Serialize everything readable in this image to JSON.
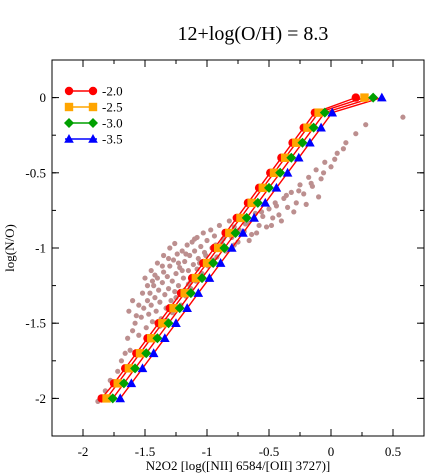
{
  "chart_data": {
    "type": "scatter",
    "title": "12+log(O/H) = 8.3",
    "xlabel": "N2O2 [log([NII] 6584/[OII] 3727)]",
    "ylabel": "log(N/O)",
    "xlim": [
      -2.25,
      0.75
    ],
    "ylim": [
      -2.25,
      0.25
    ],
    "x_ticks": [
      -2,
      -1.5,
      -1,
      -0.5,
      0,
      0.5
    ],
    "x_tick_labels": [
      "-2",
      "-1.5",
      "-1",
      "-0.5",
      "0",
      "0.5"
    ],
    "y_ticks": [
      -2,
      -1.5,
      -1,
      -0.5,
      0
    ],
    "y_tick_labels": [
      "-2",
      "-1.5",
      "-1",
      "-0.5",
      "0"
    ],
    "grid": false,
    "legend_position": "top-left",
    "line_color": "#ff0000",
    "observed_color": "#bc8f8f",
    "series": [
      {
        "name": "-2.0",
        "color": "#ff0000",
        "marker": "circle",
        "points": [
          [
            -1.85,
            -2.0
          ],
          [
            -1.75,
            -1.9
          ],
          [
            -1.66,
            -1.8
          ],
          [
            -1.57,
            -1.7
          ],
          [
            -1.48,
            -1.6
          ],
          [
            -1.39,
            -1.5
          ],
          [
            -1.3,
            -1.4
          ],
          [
            -1.21,
            -1.3
          ],
          [
            -1.12,
            -1.2
          ],
          [
            -1.03,
            -1.1
          ],
          [
            -0.94,
            -1.0
          ],
          [
            -0.85,
            -0.9
          ],
          [
            -0.76,
            -0.8
          ],
          [
            -0.67,
            -0.7
          ],
          [
            -0.58,
            -0.6
          ],
          [
            -0.49,
            -0.5
          ],
          [
            -0.4,
            -0.4
          ],
          [
            -0.31,
            -0.3
          ],
          [
            -0.22,
            -0.2
          ],
          [
            -0.13,
            -0.1
          ],
          [
            0.2,
            0.0
          ]
        ]
      },
      {
        "name": "-2.5",
        "color": "#ffa500",
        "marker": "square",
        "points": [
          [
            -1.81,
            -2.0
          ],
          [
            -1.72,
            -1.9
          ],
          [
            -1.63,
            -1.8
          ],
          [
            -1.54,
            -1.7
          ],
          [
            -1.45,
            -1.6
          ],
          [
            -1.36,
            -1.5
          ],
          [
            -1.27,
            -1.4
          ],
          [
            -1.18,
            -1.3
          ],
          [
            -1.09,
            -1.2
          ],
          [
            -1.0,
            -1.1
          ],
          [
            -0.91,
            -1.0
          ],
          [
            -0.82,
            -0.9
          ],
          [
            -0.73,
            -0.8
          ],
          [
            -0.64,
            -0.7
          ],
          [
            -0.55,
            -0.6
          ],
          [
            -0.46,
            -0.5
          ],
          [
            -0.37,
            -0.4
          ],
          [
            -0.28,
            -0.3
          ],
          [
            -0.19,
            -0.2
          ],
          [
            -0.1,
            -0.1
          ],
          [
            0.27,
            0.0
          ]
        ]
      },
      {
        "name": "-3.0",
        "color": "#00a000",
        "marker": "diamond",
        "points": [
          [
            -1.76,
            -2.0
          ],
          [
            -1.67,
            -1.9
          ],
          [
            -1.58,
            -1.8
          ],
          [
            -1.49,
            -1.7
          ],
          [
            -1.4,
            -1.6
          ],
          [
            -1.31,
            -1.5
          ],
          [
            -1.22,
            -1.4
          ],
          [
            -1.13,
            -1.3
          ],
          [
            -1.04,
            -1.2
          ],
          [
            -0.95,
            -1.1
          ],
          [
            -0.86,
            -1.0
          ],
          [
            -0.77,
            -0.9
          ],
          [
            -0.68,
            -0.8
          ],
          [
            -0.59,
            -0.7
          ],
          [
            -0.5,
            -0.6
          ],
          [
            -0.41,
            -0.5
          ],
          [
            -0.32,
            -0.4
          ],
          [
            -0.23,
            -0.3
          ],
          [
            -0.14,
            -0.2
          ],
          [
            -0.05,
            -0.1
          ],
          [
            0.34,
            0.0
          ]
        ]
      },
      {
        "name": "-3.5",
        "color": "#0000ff",
        "marker": "triangle",
        "points": [
          [
            -1.7,
            -2.0
          ],
          [
            -1.61,
            -1.9
          ],
          [
            -1.52,
            -1.8
          ],
          [
            -1.43,
            -1.7
          ],
          [
            -1.34,
            -1.6
          ],
          [
            -1.25,
            -1.5
          ],
          [
            -1.16,
            -1.4
          ],
          [
            -1.07,
            -1.3
          ],
          [
            -0.98,
            -1.2
          ],
          [
            -0.89,
            -1.1
          ],
          [
            -0.8,
            -1.0
          ],
          [
            -0.71,
            -0.9
          ],
          [
            -0.62,
            -0.8
          ],
          [
            -0.53,
            -0.7
          ],
          [
            -0.44,
            -0.6
          ],
          [
            -0.35,
            -0.5
          ],
          [
            -0.26,
            -0.4
          ],
          [
            -0.17,
            -0.3
          ],
          [
            -0.08,
            -0.2
          ],
          [
            0.01,
            -0.1
          ],
          [
            0.41,
            0.0
          ]
        ]
      }
    ],
    "observed": [
      [
        -1.88,
        -2.02
      ],
      [
        -1.82,
        -1.95
      ],
      [
        -1.78,
        -1.88
      ],
      [
        -1.72,
        -1.82
      ],
      [
        -1.69,
        -1.75
      ],
      [
        -1.66,
        -1.7
      ],
      [
        -1.62,
        -1.68
      ],
      [
        -1.64,
        -1.6
      ],
      [
        -1.6,
        -1.55
      ],
      [
        -1.58,
        -1.5
      ],
      [
        -1.55,
        -1.58
      ],
      [
        -1.53,
        -1.46
      ],
      [
        -1.51,
        -1.4
      ],
      [
        -1.49,
        -1.53
      ],
      [
        -1.48,
        -1.35
      ],
      [
        -1.47,
        -1.44
      ],
      [
        -1.46,
        -1.3
      ],
      [
        -1.45,
        -1.38
      ],
      [
        -1.44,
        -1.49
      ],
      [
        -1.43,
        -1.25
      ],
      [
        -1.42,
        -1.33
      ],
      [
        -1.41,
        -1.42
      ],
      [
        -1.4,
        -1.2
      ],
      [
        -1.39,
        -1.28
      ],
      [
        -1.38,
        -1.36
      ],
      [
        -1.37,
        -1.47
      ],
      [
        -1.36,
        -1.23
      ],
      [
        -1.35,
        -1.16
      ],
      [
        -1.34,
        -1.31
      ],
      [
        -1.33,
        -1.4
      ],
      [
        -1.32,
        -1.19
      ],
      [
        -1.31,
        -1.27
      ],
      [
        -1.3,
        -1.12
      ],
      [
        -1.29,
        -1.35
      ],
      [
        -1.28,
        -1.22
      ],
      [
        -1.27,
        -1.08
      ],
      [
        -1.26,
        -1.29
      ],
      [
        -1.25,
        -1.17
      ],
      [
        -1.24,
        -1.04
      ],
      [
        -1.23,
        -1.25
      ],
      [
        -1.22,
        -1.13
      ],
      [
        -1.21,
        -1.38
      ],
      [
        -1.2,
        -1.02
      ],
      [
        -1.19,
        -1.2
      ],
      [
        -1.18,
        -1.09
      ],
      [
        -1.17,
        -1.32
      ],
      [
        -1.16,
        -0.98
      ],
      [
        -1.15,
        -1.15
      ],
      [
        -1.14,
        -1.05
      ],
      [
        -1.13,
        -1.27
      ],
      [
        -1.12,
        -0.96
      ],
      [
        -1.11,
        -1.11
      ],
      [
        -1.1,
        -1.02
      ],
      [
        -1.09,
        -1.22
      ],
      [
        -1.08,
        -0.93
      ],
      [
        -1.07,
        -1.07
      ],
      [
        -1.05,
        -0.99
      ],
      [
        -1.04,
        -1.17
      ],
      [
        -1.03,
        -0.9
      ],
      [
        -1.02,
        -1.03
      ],
      [
        -1.0,
        -0.95
      ],
      [
        -0.99,
        -1.12
      ],
      [
        -0.97,
        -0.88
      ],
      [
        -0.96,
        -1.0
      ],
      [
        -0.94,
        -0.92
      ],
      [
        -0.92,
        -1.06
      ],
      [
        -0.9,
        -0.85
      ],
      [
        -0.88,
        -0.97
      ],
      [
        -0.86,
        -0.89
      ],
      [
        -0.84,
        -1.01
      ],
      [
        -0.82,
        -0.82
      ],
      [
        -0.8,
        -0.93
      ],
      [
        -0.78,
        -0.86
      ],
      [
        -0.75,
        -0.96
      ],
      [
        -0.72,
        -0.8
      ],
      [
        -0.7,
        -0.89
      ],
      [
        -0.67,
        -0.83
      ],
      [
        -0.64,
        -0.91
      ],
      [
        -0.61,
        -0.77
      ],
      [
        -0.58,
        -0.85
      ],
      [
        -0.55,
        -0.79
      ],
      [
        -0.52,
        -0.86
      ],
      [
        -0.5,
        -0.74
      ],
      [
        -0.47,
        -0.8
      ],
      [
        -0.44,
        -0.72
      ],
      [
        -0.42,
        -0.78
      ],
      [
        -0.38,
        -0.67
      ],
      [
        -0.35,
        -0.73
      ],
      [
        -0.32,
        -0.63
      ],
      [
        -0.28,
        -0.7
      ],
      [
        -0.25,
        -0.58
      ],
      [
        -0.22,
        -0.64
      ],
      [
        -0.18,
        -0.53
      ],
      [
        -0.15,
        -0.59
      ],
      [
        -0.12,
        -0.48
      ],
      [
        -0.08,
        -0.54
      ],
      [
        -0.05,
        -0.43
      ],
      [
        0.0,
        -0.46
      ],
      [
        0.05,
        -0.37
      ],
      [
        0.12,
        -0.3
      ],
      [
        0.2,
        -0.24
      ],
      [
        0.28,
        -0.18
      ],
      [
        0.58,
        -0.13
      ],
      [
        -1.57,
        -1.45
      ],
      [
        -1.52,
        -1.3
      ],
      [
        -1.5,
        -1.2
      ],
      [
        -1.45,
        -1.15
      ],
      [
        -1.4,
        -1.1
      ],
      [
        -1.35,
        -1.05
      ],
      [
        -1.3,
        -1.0
      ],
      [
        -1.26,
        -0.97
      ],
      [
        -1.6,
        -1.35
      ],
      [
        -1.63,
        -1.42
      ],
      [
        -1.38,
        -1.52
      ],
      [
        -1.33,
        -1.48
      ],
      [
        -1.28,
        -1.43
      ],
      [
        -1.18,
        -1.28
      ],
      [
        -1.13,
        -1.22
      ],
      [
        -1.08,
        -1.14
      ],
      [
        -0.95,
        -1.08
      ],
      [
        -0.85,
        -1.02
      ],
      [
        -0.78,
        -0.98
      ],
      [
        -0.66,
        -0.95
      ],
      [
        -0.6,
        -0.9
      ],
      [
        -0.48,
        -0.85
      ],
      [
        -0.4,
        -0.82
      ],
      [
        -0.3,
        -0.76
      ],
      [
        -0.2,
        -0.71
      ],
      [
        -0.1,
        -0.66
      ],
      [
        -1.44,
        -1.22
      ],
      [
        -1.36,
        -1.12
      ],
      [
        -1.31,
        -1.07
      ],
      [
        -1.23,
        -1.1
      ],
      [
        -1.17,
        -1.04
      ],
      [
        -1.1,
        -0.94
      ],
      [
        -1.48,
        -1.25
      ],
      [
        -1.55,
        -1.38
      ],
      [
        -1.42,
        -1.18
      ],
      [
        -1.2,
        -1.15
      ],
      [
        -1.25,
        -1.33
      ],
      [
        -1.15,
        -1.24
      ],
      [
        -1.06,
        -1.1
      ],
      [
        -1.01,
        -1.05
      ],
      [
        -0.93,
        -0.98
      ],
      [
        -0.87,
        -0.94
      ],
      [
        -0.74,
        -0.88
      ],
      [
        -0.69,
        -0.84
      ],
      [
        -0.56,
        -0.76
      ],
      [
        -0.45,
        -0.7
      ],
      [
        -0.36,
        -0.65
      ],
      [
        -0.26,
        -0.62
      ],
      [
        -0.16,
        -0.57
      ],
      [
        -0.06,
        -0.5
      ],
      [
        0.03,
        -0.41
      ],
      [
        0.1,
        -0.34
      ]
    ]
  }
}
